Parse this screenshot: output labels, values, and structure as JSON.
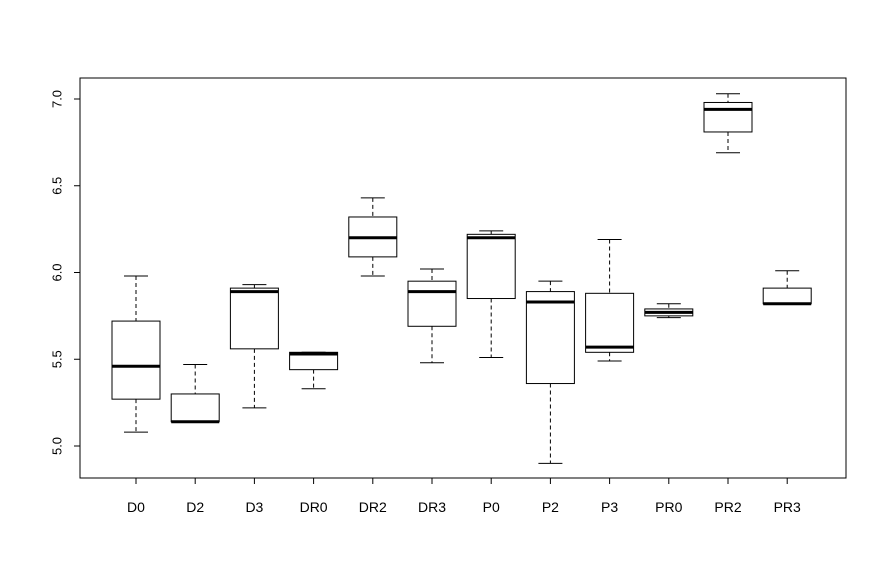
{
  "chart_data": {
    "type": "boxplot",
    "title": "",
    "xlabel": "",
    "ylabel": "",
    "ylim": [
      4.8,
      7.1
    ],
    "y_ticks": [
      "5.0",
      "5.5",
      "6.0",
      "6.5",
      "7.0"
    ],
    "y_tick_values": [
      5.0,
      5.5,
      6.0,
      6.5,
      7.0
    ],
    "categories": [
      "D0",
      "D2",
      "D3",
      "DR0",
      "DR2",
      "DR3",
      "P0",
      "P2",
      "P3",
      "PR0",
      "PR2",
      "PR3"
    ],
    "boxes": [
      {
        "category": "D0",
        "min": 5.08,
        "q1": 5.27,
        "median": 5.46,
        "q3": 5.72,
        "max": 5.98
      },
      {
        "category": "D2",
        "min": 5.14,
        "q1": 5.14,
        "median": 5.14,
        "q3": 5.3,
        "max": 5.47
      },
      {
        "category": "D3",
        "min": 5.22,
        "q1": 5.56,
        "median": 5.89,
        "q3": 5.91,
        "max": 5.93
      },
      {
        "category": "DR0",
        "min": 5.33,
        "q1": 5.44,
        "median": 5.53,
        "q3": 5.54,
        "max": 5.54
      },
      {
        "category": "DR2",
        "min": 5.98,
        "q1": 6.09,
        "median": 6.2,
        "q3": 6.32,
        "max": 6.43
      },
      {
        "category": "DR3",
        "min": 5.48,
        "q1": 5.69,
        "median": 5.89,
        "q3": 5.95,
        "max": 6.02
      },
      {
        "category": "P0",
        "min": 5.51,
        "q1": 5.85,
        "median": 6.2,
        "q3": 6.22,
        "max": 6.24
      },
      {
        "category": "P2",
        "min": 4.9,
        "q1": 5.36,
        "median": 5.83,
        "q3": 5.89,
        "max": 5.95
      },
      {
        "category": "P3",
        "min": 5.49,
        "q1": 5.54,
        "median": 5.57,
        "q3": 5.88,
        "max": 6.19
      },
      {
        "category": "PR0",
        "min": 5.74,
        "q1": 5.75,
        "median": 5.77,
        "q3": 5.79,
        "max": 5.82
      },
      {
        "category": "PR2",
        "min": 6.69,
        "q1": 6.81,
        "median": 6.94,
        "q3": 6.98,
        "max": 7.03
      },
      {
        "category": "PR3",
        "min": 5.82,
        "q1": 5.82,
        "median": 5.82,
        "q3": 5.91,
        "max": 6.01
      }
    ],
    "grid": false,
    "legend": "none"
  }
}
